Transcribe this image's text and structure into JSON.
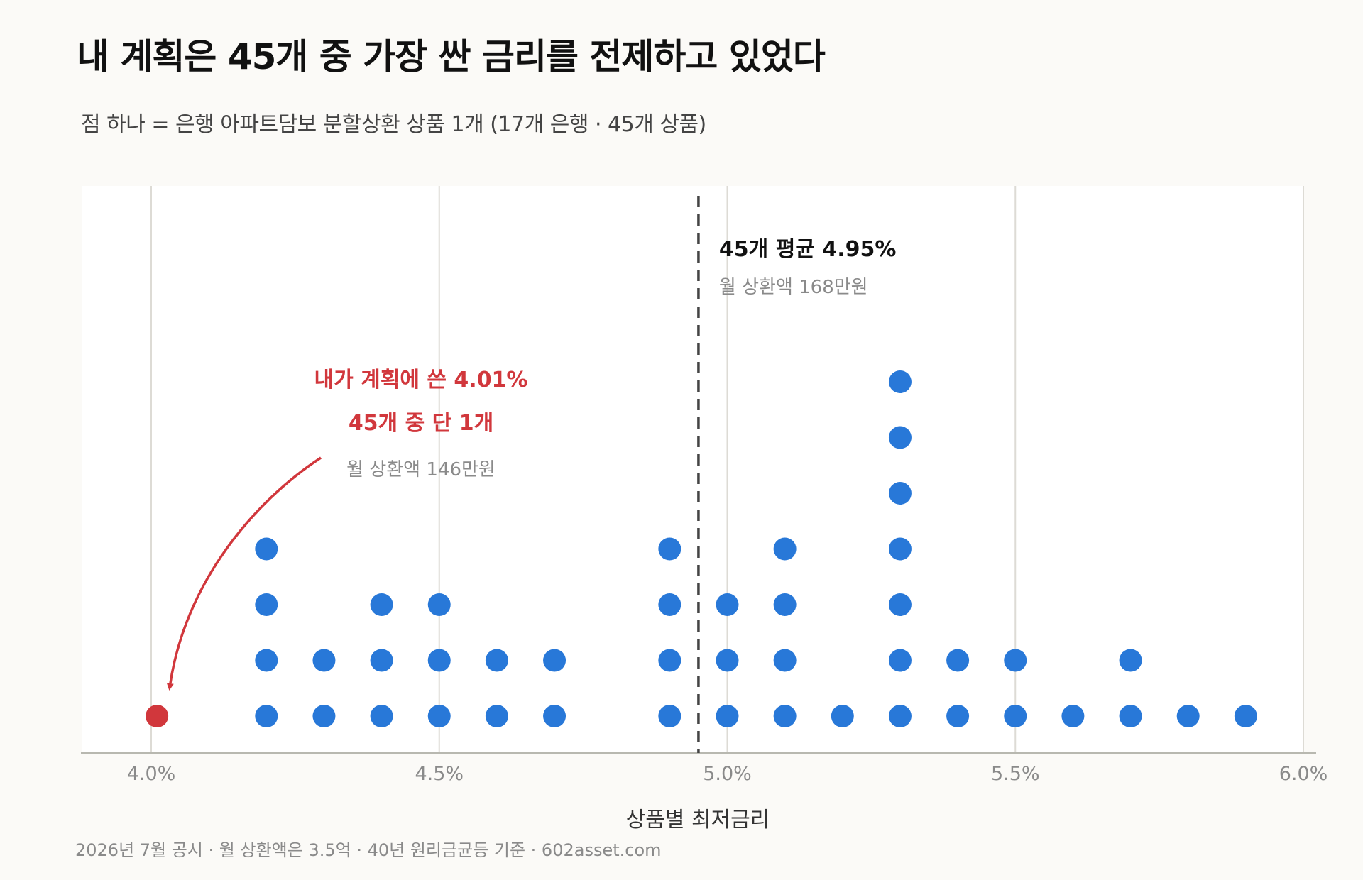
{
  "title": "내 계획은 45개 중 가장 싼 금리를 전제하고 있었다",
  "subtitle": "점 하나 = 은행 아파트담보 분할상환 상품 1개 (17개 은행 · 45개 상품)",
  "footer": "2026년 7월 공시 · 월 상환액은 3.5억 · 40년 원리금균등 기준 · 602asset.com",
  "colors": {
    "dot": "#2878d8",
    "highlight": "#d1373c",
    "mean_line": "#444444",
    "grid": "#dddbd5",
    "axis": "#b8b8b0",
    "plot_bg": "#ffffff",
    "page_bg": "#fbfaf7"
  },
  "chart_data": {
    "type": "scatter",
    "subtype": "dot-plot (stacked)",
    "xlabel": "상품별 최저금리",
    "ylabel": "",
    "xlim": [
      3.88,
      6.02
    ],
    "x_ticks": [
      4.0,
      4.5,
      5.0,
      5.5,
      6.0
    ],
    "x_tick_labels": [
      "4.0%",
      "4.5%",
      "5.0%",
      "5.5%",
      "6.0%"
    ],
    "grid": "vertical",
    "total_products": 45,
    "series": [
      {
        "values": [
          {
            "x": 4.2,
            "count": 4
          },
          {
            "x": 4.3,
            "count": 2
          },
          {
            "x": 4.4,
            "count": 3
          },
          {
            "x": 4.5,
            "count": 3
          },
          {
            "x": 4.6,
            "count": 2
          },
          {
            "x": 4.7,
            "count": 2
          },
          {
            "x": 4.9,
            "count": 4
          },
          {
            "x": 5.0,
            "count": 3
          },
          {
            "x": 5.1,
            "count": 4
          },
          {
            "x": 5.2,
            "count": 1
          },
          {
            "x": 5.3,
            "count": 7
          },
          {
            "x": 5.4,
            "count": 2
          },
          {
            "x": 5.5,
            "count": 2
          },
          {
            "x": 5.6,
            "count": 1
          },
          {
            "x": 5.7,
            "count": 2
          },
          {
            "x": 5.8,
            "count": 1
          },
          {
            "x": 5.9,
            "count": 1
          }
        ]
      },
      {
        "highlight": true,
        "values": [
          {
            "x": 4.01,
            "count": 1
          }
        ]
      }
    ],
    "mean": {
      "x": 4.95,
      "label": "45개 평균 4.95%",
      "sublabel": "월 상환액 168만원"
    },
    "annotation": {
      "target_x": 4.01,
      "line1": "내가 계획에 쓴 4.01%",
      "line2": "45개 중 단 1개",
      "line3": "월 상환액 146만원"
    }
  }
}
